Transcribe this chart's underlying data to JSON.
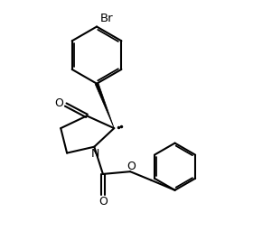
{
  "background_color": "#ffffff",
  "line_color": "#000000",
  "line_width": 1.5,
  "figsize": [
    2.8,
    2.76
  ],
  "dpi": 100,
  "br_label": "Br",
  "o_label1": "O",
  "o_label2": "O",
  "o_label3": "O",
  "n_label": "N",
  "font_size_atoms": 9,
  "xlim": [
    0,
    10
  ],
  "ylim": [
    0,
    10
  ]
}
